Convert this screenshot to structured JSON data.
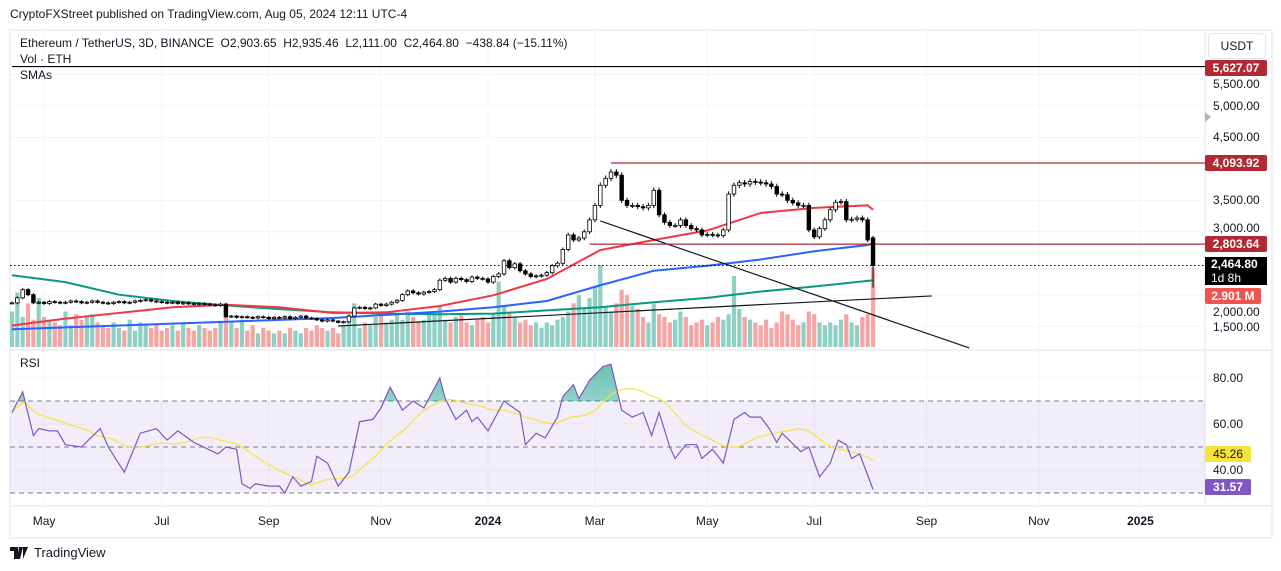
{
  "header": {
    "published": "CryptoFXStreet published on TradingView.com, Aug 05, 2024 12:11 UTC-4"
  },
  "legend": {
    "symbol": "Ethereum / TetherUS, 3D, BINANCE",
    "open": "O2,903.65",
    "high": "H2,935.46",
    "low": "L2,111.00",
    "close": "C2,464.80",
    "change": "−438.84 (−15.11%)",
    "volume": "Vol · ETH",
    "smas": "SMAs",
    "rsi": "RSI"
  },
  "currency_button": "USDT",
  "footer": {
    "brand": "TradingView"
  },
  "colors": {
    "up_volume": "#8fd0c4",
    "down_volume": "#f5a5a3",
    "sma_red": "#f23645",
    "sma_blue": "#2962ff",
    "sma_green": "#089981",
    "rsi": "#7e57c2",
    "rsi_ma": "#f7e33b",
    "level_red": "#b22833",
    "last_price": "#000000",
    "volume_label": "#f05350"
  },
  "chart_data": {
    "type": "candlestick",
    "interval": "3D",
    "y_scale": "linear",
    "price_ticks": [
      "5,500.00",
      "5,000.00",
      "4,500.00",
      "3,500.00",
      "3,000.00",
      "2,000.00",
      "1,500.00"
    ],
    "price_tick_values": [
      5500,
      5000,
      4500,
      3500,
      3000,
      2000,
      1500
    ],
    "time_ticks": [
      {
        "label": "May",
        "candle": 6
      },
      {
        "label": "Jul",
        "candle": 28
      },
      {
        "label": "Sep",
        "candle": 48
      },
      {
        "label": "Nov",
        "candle": 69
      },
      {
        "label": "2024",
        "candle": 89
      },
      {
        "label": "Mar",
        "candle": 109
      },
      {
        "label": "May",
        "candle": 130
      },
      {
        "label": "Jul",
        "candle": 150
      },
      {
        "label": "Sep",
        "candle": 171
      },
      {
        "label": "Nov",
        "candle": 192
      },
      {
        "label": "2025",
        "candle": 211
      }
    ],
    "last_candle": {
      "open": 2903.65,
      "high": 2935.46,
      "low": 2111.0,
      "close": 2464.8
    },
    "close": [
      1870,
      1950,
      2080,
      2000,
      1870,
      1880,
      1860,
      1890,
      1880,
      1870,
      1880,
      1900,
      1890,
      1870,
      1880,
      1900,
      1880,
      1870,
      1860,
      1880,
      1890,
      1870,
      1880,
      1900,
      1910,
      1920,
      1900,
      1890,
      1880,
      1870,
      1880,
      1860,
      1870,
      1860,
      1850,
      1860,
      1850,
      1840,
      1830,
      1850,
      1650,
      1660,
      1640,
      1650,
      1640,
      1630,
      1650,
      1640,
      1620,
      1640,
      1630,
      1650,
      1620,
      1640,
      1660,
      1630,
      1620,
      1600,
      1580,
      1600,
      1580,
      1560,
      1570,
      1660,
      1790,
      1800,
      1780,
      1790,
      1850,
      1830,
      1850,
      1880,
      1910,
      2000,
      2060,
      2030,
      2010,
      2040,
      2050,
      2080,
      2230,
      2260,
      2200,
      2260,
      2240,
      2210,
      2280,
      2260,
      2250,
      2200,
      2290,
      2330,
      2540,
      2430,
      2490,
      2380,
      2330,
      2290,
      2300,
      2310,
      2350,
      2460,
      2500,
      2720,
      2950,
      2870,
      2900,
      3000,
      3190,
      3420,
      3740,
      3850,
      3950,
      3900,
      3500,
      3420,
      3420,
      3400,
      3380,
      3420,
      3660,
      3270,
      3150,
      3100,
      3100,
      3190,
      3100,
      3050,
      3030,
      2950,
      2960,
      2950,
      2940,
      3030,
      3600,
      3740,
      3780,
      3760,
      3800,
      3790,
      3780,
      3760,
      3720,
      3600,
      3590,
      3500,
      3460,
      3420,
      3420,
      3030,
      2920,
      3050,
      3190,
      3350,
      3470,
      3480,
      3190,
      3200,
      3220,
      3190,
      2870,
      2464.8
    ],
    "volume_millions": [
      1.3,
      2.0,
      1.1,
      1.6,
      1.0,
      1.8,
      1.1,
      1.0,
      0.9,
      0.8,
      1.3,
      0.8,
      1.2,
      1.0,
      1.1,
      1.2,
      0.9,
      0.8,
      0.7,
      0.9,
      0.7,
      0.6,
      1.0,
      0.6,
      0.9,
      0.8,
      0.7,
      0.8,
      0.6,
      0.7,
      0.8,
      0.6,
      0.9,
      0.7,
      0.6,
      0.8,
      0.7,
      0.6,
      0.7,
      0.9,
      1.4,
      0.9,
      0.7,
      1.0,
      0.6,
      0.8,
      0.5,
      0.7,
      0.6,
      0.5,
      0.6,
      0.5,
      0.7,
      0.6,
      0.5,
      0.7,
      0.6,
      0.8,
      0.7,
      0.6,
      0.7,
      0.5,
      0.8,
      1.2,
      1.6,
      0.7,
      0.9,
      0.8,
      1.1,
      1.3,
      0.9,
      1.0,
      1.2,
      1.0,
      1.3,
      1.1,
      0.9,
      1.0,
      1.3,
      1.2,
      1.5,
      1.0,
      0.9,
      1.1,
      1.2,
      0.9,
      0.8,
      1.0,
      1.1,
      0.9,
      1.2,
      2.4,
      1.5,
      1.3,
      1.1,
      0.9,
      1.0,
      0.8,
      0.9,
      0.7,
      0.9,
      0.8,
      1.0,
      1.1,
      1.3,
      1.6,
      1.9,
      1.4,
      1.8,
      2.2,
      3.0,
      1.5,
      1.3,
      1.6,
      2.1,
      1.9,
      1.5,
      1.4,
      1.1,
      0.9,
      1.6,
      1.2,
      1.1,
      0.9,
      1.0,
      1.3,
      1.1,
      0.8,
      0.9,
      1.0,
      0.8,
      0.9,
      1.1,
      1.0,
      1.2,
      2.6,
      1.4,
      1.1,
      1.0,
      0.9,
      0.8,
      1.0,
      0.7,
      0.9,
      1.3,
      1.2,
      1.0,
      0.8,
      0.9,
      1.3,
      1.2,
      0.9,
      0.8,
      0.9,
      0.8,
      1.0,
      1.2,
      0.9,
      0.8,
      1.1,
      1.2,
      2.901
    ],
    "sma_sample_every": 10,
    "sma_red": [
      1510,
      1620,
      1710,
      1800,
      1840,
      1800,
      1710,
      1720,
      1820,
      1990,
      2250,
      2710,
      2870,
      3020,
      3300,
      3380,
      3420,
      3350
    ],
    "sma_blue": [
      1450,
      1480,
      1510,
      1540,
      1570,
      1600,
      1630,
      1680,
      1730,
      1800,
      1900,
      2150,
      2380,
      2460,
      2560,
      2690,
      2790,
      2820
    ],
    "sma_green": [
      2310,
      2200,
      2000,
      1900,
      1830,
      1770,
      1720,
      1700,
      1690,
      1700,
      1750,
      1800,
      1880,
      1950,
      2050,
      2130,
      2220,
      2230
    ],
    "levels": [
      {
        "price": 5627.07,
        "label": "5,627.07",
        "color": "#000000",
        "from_candle": 0
      },
      {
        "price": 4093.92,
        "label": "4,093.92",
        "color": "#b22833",
        "from_candle": 112
      },
      {
        "price": 2803.64,
        "label": "2,803.64",
        "color": "#b22833",
        "from_candle": 108
      }
    ],
    "last_price_label": "2,464.80",
    "countdown": "1d 8h",
    "last_volume_label": "2.901 M",
    "trendlines": [
      {
        "from": [
          110,
          3172
        ],
        "to": [
          179,
          1153
        ]
      },
      {
        "from": [
          61,
          1502
        ],
        "to": [
          172,
          1980
        ]
      }
    ],
    "rsi": {
      "points": [
        [
          0,
          65
        ],
        [
          2,
          74
        ],
        [
          4,
          55
        ],
        [
          5,
          58
        ],
        [
          7,
          57
        ],
        [
          8.5,
          57
        ],
        [
          10,
          51
        ],
        [
          13,
          50
        ],
        [
          16.5,
          58
        ],
        [
          18,
          50
        ],
        [
          21,
          39
        ],
        [
          24,
          56
        ],
        [
          27,
          58
        ],
        [
          29,
          53
        ],
        [
          31,
          57
        ],
        [
          34,
          52
        ],
        [
          38.5,
          47
        ],
        [
          40,
          50
        ],
        [
          42,
          49
        ],
        [
          43,
          34
        ],
        [
          44.5,
          32
        ],
        [
          45.5,
          34
        ],
        [
          48,
          33
        ],
        [
          50,
          33
        ],
        [
          51,
          30
        ],
        [
          52.5,
          37
        ],
        [
          54,
          33
        ],
        [
          56,
          35
        ],
        [
          57,
          46
        ],
        [
          59,
          43
        ],
        [
          61,
          33
        ],
        [
          63,
          39
        ],
        [
          65,
          61
        ],
        [
          67.5,
          62
        ],
        [
          69,
          67
        ],
        [
          70.7,
          76
        ],
        [
          73,
          66
        ],
        [
          75,
          70
        ],
        [
          77,
          67
        ],
        [
          80,
          80
        ],
        [
          81,
          71
        ],
        [
          83,
          62
        ],
        [
          85,
          66
        ],
        [
          86,
          61
        ],
        [
          87,
          63
        ],
        [
          89,
          57
        ],
        [
          92,
          70
        ],
        [
          95,
          65
        ],
        [
          96,
          51
        ],
        [
          98,
          56
        ],
        [
          99.7,
          54
        ],
        [
          102,
          63
        ],
        [
          103,
          72
        ],
        [
          105,
          77
        ],
        [
          106,
          71
        ],
        [
          108,
          79
        ],
        [
          110.5,
          85
        ],
        [
          112,
          86
        ],
        [
          114,
          66
        ],
        [
          116,
          63
        ],
        [
          118,
          65
        ],
        [
          119.6,
          55
        ],
        [
          121,
          65
        ],
        [
          123,
          50
        ],
        [
          124,
          45
        ],
        [
          126,
          51
        ],
        [
          128,
          51
        ],
        [
          129,
          45
        ],
        [
          131,
          49
        ],
        [
          133,
          43
        ],
        [
          135,
          62
        ],
        [
          137,
          65
        ],
        [
          138,
          63
        ],
        [
          140,
          63
        ],
        [
          141.6,
          58
        ],
        [
          143,
          52
        ],
        [
          144,
          56
        ],
        [
          147.5,
          48
        ],
        [
          149,
          50
        ],
        [
          150.7,
          39
        ],
        [
          151,
          37
        ],
        [
          153,
          43
        ],
        [
          154.5,
          53
        ],
        [
          156,
          51
        ],
        [
          157,
          45
        ],
        [
          158.5,
          47
        ],
        [
          161,
          31.57
        ]
      ],
      "ticks": [
        "80.00",
        "60.00",
        "40.00"
      ],
      "tick_values": [
        80,
        60,
        40
      ],
      "bands": [
        70,
        50,
        30
      ],
      "ma_label": "45.26",
      "value_label": "31.57"
    }
  }
}
